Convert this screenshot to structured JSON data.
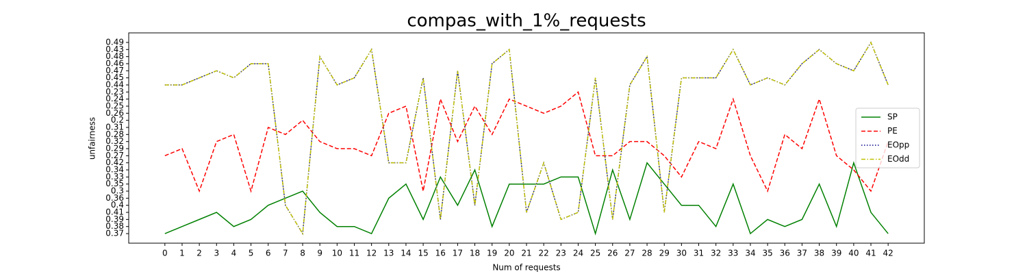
{
  "chart_data": {
    "type": "line",
    "title": "compas_with_1%_requests",
    "x_label": "Num of requests",
    "y_label": "unfairness",
    "x": [
      0,
      1,
      2,
      3,
      4,
      5,
      6,
      7,
      8,
      9,
      10,
      11,
      12,
      13,
      14,
      15,
      16,
      17,
      18,
      19,
      20,
      21,
      22,
      23,
      24,
      25,
      26,
      27,
      28,
      29,
      30,
      31,
      32,
      33,
      34,
      35,
      36,
      37,
      38,
      39,
      40,
      41,
      42
    ],
    "ycategories": [
      0.37,
      0.38,
      0.39,
      0.41,
      0.4,
      0.36,
      0.3,
      0.35,
      0.33,
      0.34,
      0.42,
      0.27,
      0.29,
      0.32,
      0.28,
      0.31,
      0.2,
      0.26,
      0.25,
      0.24,
      0.23,
      0.44,
      0.45,
      0.47,
      0.46,
      0.48,
      0.43,
      0.49
    ],
    "legend": "center right",
    "series": [
      {
        "name": "SP",
        "color": "#008000",
        "dash": "solid",
        "values": [
          0.37,
          0.38,
          0.39,
          0.41,
          0.38,
          0.39,
          0.4,
          0.36,
          0.3,
          0.41,
          0.38,
          0.38,
          0.37,
          0.36,
          0.35,
          0.39,
          0.33,
          0.4,
          0.34,
          0.38,
          0.35,
          0.35,
          0.35,
          0.33,
          0.33,
          0.37,
          0.34,
          0.39,
          0.42,
          0.35,
          0.4,
          0.4,
          0.38,
          0.35,
          0.37,
          0.39,
          0.38,
          0.39,
          0.35,
          0.38,
          0.42,
          0.41,
          0.37
        ]
      },
      {
        "name": "PE",
        "color": "#ff0000",
        "dash": "dashed",
        "values": [
          0.27,
          0.29,
          0.3,
          0.32,
          0.28,
          0.3,
          0.31,
          0.28,
          0.2,
          0.32,
          0.29,
          0.29,
          0.27,
          0.26,
          0.25,
          0.3,
          0.24,
          0.32,
          0.25,
          0.28,
          0.24,
          0.25,
          0.26,
          0.25,
          0.23,
          0.27,
          0.27,
          0.32,
          0.32,
          0.27,
          0.33,
          0.32,
          0.29,
          0.24,
          0.27,
          0.3,
          0.28,
          0.29,
          0.24,
          0.27,
          0.34,
          0.3,
          0.32
        ]
      },
      {
        "name": "EOpp",
        "color": "#00008b",
        "dash": "dotted",
        "values": [
          0.44,
          0.44,
          0.45,
          0.47,
          0.45,
          0.46,
          0.46,
          0.4,
          0.37,
          0.48,
          0.44,
          0.45,
          0.43,
          0.42,
          0.42,
          0.45,
          0.39,
          0.47,
          0.4,
          0.46,
          0.43,
          0.41,
          0.42,
          0.39,
          0.41,
          0.45,
          0.39,
          0.44,
          0.48,
          0.41,
          0.45,
          0.45,
          0.45,
          0.43,
          0.44,
          0.45,
          0.44,
          0.46,
          0.43,
          0.46,
          0.47,
          0.49,
          0.44
        ]
      },
      {
        "name": "EOdd",
        "color": "#bfbf00",
        "dash": "dashdot",
        "values": [
          0.44,
          0.44,
          0.45,
          0.47,
          0.45,
          0.46,
          0.46,
          0.4,
          0.37,
          0.48,
          0.44,
          0.45,
          0.43,
          0.42,
          0.42,
          0.45,
          0.39,
          0.47,
          0.4,
          0.46,
          0.43,
          0.41,
          0.42,
          0.39,
          0.41,
          0.45,
          0.39,
          0.44,
          0.48,
          0.41,
          0.45,
          0.45,
          0.45,
          0.43,
          0.44,
          0.45,
          0.44,
          0.46,
          0.43,
          0.46,
          0.47,
          0.49,
          0.44
        ]
      }
    ]
  }
}
